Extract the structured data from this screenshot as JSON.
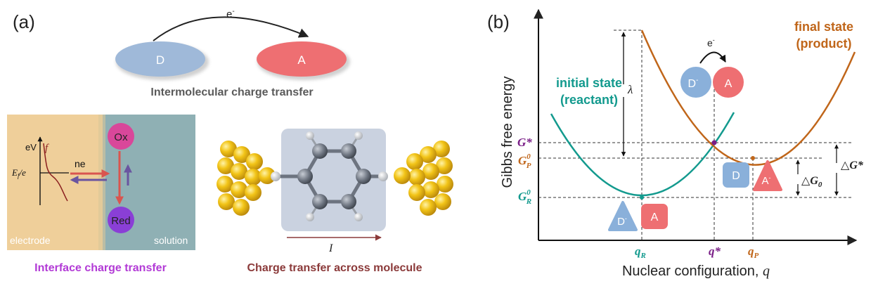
{
  "panel_a": {
    "label": "(a)",
    "intermolecular": {
      "electron": "e",
      "electron_sup": "-",
      "donor": "D",
      "acceptor": "A",
      "caption": "Intermolecular charge transfer"
    },
    "interface": {
      "ev_label": "eV",
      "f_label": "f",
      "ef_main": "E",
      "ef_sub": "f",
      "ef_tail": "/e",
      "ne_label": "ne",
      "ox": "Ox",
      "red": "Red",
      "electrode": "electrode",
      "solution": "solution",
      "caption": "Interface charge transfer"
    },
    "molecule": {
      "current": "I",
      "caption": "Charge transfer across molecule"
    },
    "colors": {
      "donor": "#9fb9d9",
      "acceptor": "#ee6f72",
      "electrode": "#efcf9a",
      "solution": "#8fb0b4",
      "ox": "#d9479a",
      "red": "#8a3fd6",
      "gold": "#f2c417",
      "interface_caption": "#b23ad6",
      "molecule_caption": "#8b3a3a"
    }
  },
  "panel_b": {
    "label": "(b)",
    "y_axis": "Gibbs free energy",
    "x_axis_main": "Nuclear configuration, ",
    "x_axis_var": "q",
    "initial_state": [
      "initial state",
      "(reactant)"
    ],
    "final_state": [
      "final state",
      "(product)"
    ],
    "lambda": "λ",
    "g_star": "G*",
    "gp0_main": "G",
    "gp0_sup": "0",
    "gp0_sub": "P",
    "gr0_main": "G",
    "gr0_sup": "0",
    "gr0_sub": "R",
    "qr_main": "q",
    "qr_sub": "R",
    "q_star": "q*",
    "qp_main": "q",
    "qp_sub": "P",
    "delta_g0_symbol": "△",
    "delta_g0_main": "G",
    "delta_g0_sub": "0",
    "delta_gstar_symbol": "△",
    "delta_gstar_main": "G*",
    "top_pair": {
      "d": "D",
      "d_sup": "-",
      "a": "A",
      "electron": "e",
      "electron_sup": "-"
    },
    "right_pair": {
      "d": "D",
      "a": "A",
      "a_sup": "-"
    },
    "left_pair": {
      "d": "D",
      "d_sup": "-",
      "a": "A"
    },
    "colors": {
      "reactant_curve": "#139a8e",
      "product_curve": "#c0661a",
      "g_star": "#7a1f87",
      "gp0": "#c0661a",
      "gr0": "#139a8e",
      "blue_shape": "#8ab0da",
      "red_shape": "#ee6f72"
    }
  }
}
